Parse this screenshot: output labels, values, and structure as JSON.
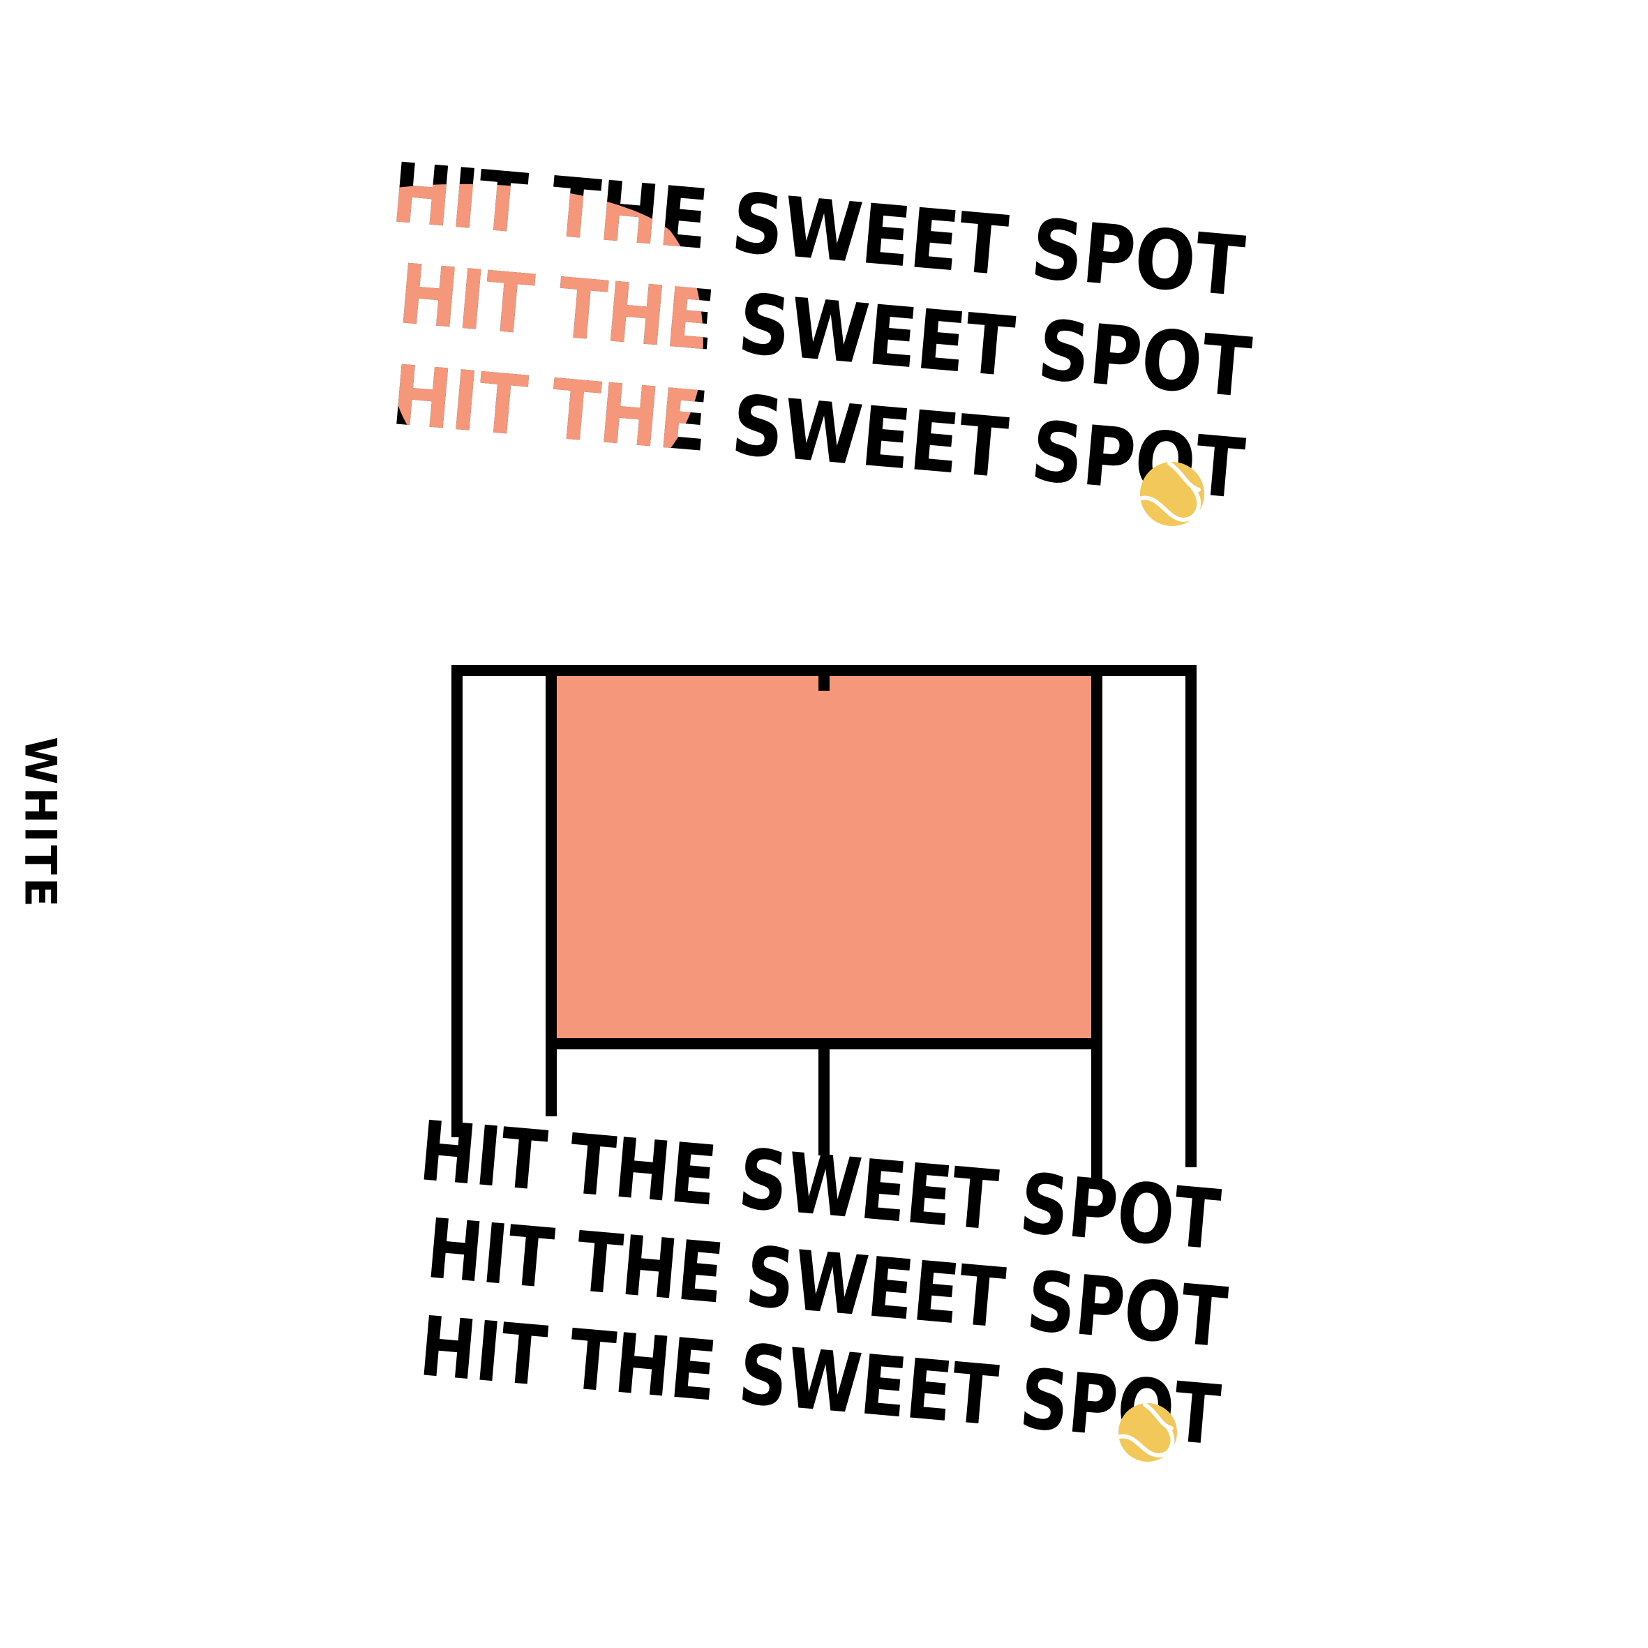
{
  "colors": {
    "background": "#ffffff",
    "ink": "#000000",
    "court": "#f4977a",
    "ball": "#f2c85b"
  },
  "top_block": {
    "lines": [
      "HIT THE SWEET SPOT",
      "HIT THE SWEET SPOT",
      "HIT THE SWEET SPOT"
    ]
  },
  "bottom_block": {
    "lines": [
      "HIT THE SWEET SPOT",
      "HIT THE SWEET SPOT",
      "HIT THE SWEET SPOT"
    ]
  },
  "side_label": "WHITE",
  "icons": {
    "ball": "tennis-ball-icon",
    "court": "tennis-court-illustration"
  }
}
